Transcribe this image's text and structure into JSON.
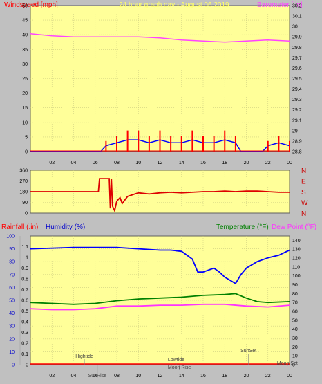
{
  "header": {
    "windspeed": "Windspeed [mph]",
    "title": "24 hour graph day - August 06 2019",
    "barometer": "Barometer [.in]"
  },
  "dir_labels": [
    "N",
    "W",
    "S",
    "E",
    "N"
  ],
  "bottom_header": {
    "rainfall": "Rainfall (.in)",
    "humidity": "Humidity (%)",
    "temperature": "Temperature (°F)",
    "dewpoint": "Dew Point (°F)"
  },
  "events": [
    {
      "label": "Hightide",
      "hour": 5.0
    },
    {
      "label": "SunRise",
      "hour": 6.2
    },
    {
      "label": "Lowtide",
      "hour": 13.5
    },
    {
      "label": "Moon Rise",
      "hour": 13.8
    },
    {
      "label": "SunSet",
      "hour": 20.2
    },
    {
      "label": "Moon Set",
      "hour": 23.8
    }
  ],
  "colors": {
    "plot_bg": "#ffff99",
    "frame": "#c0c0c0",
    "windspeed": "#ff0000",
    "gust_blue": "#0000ff",
    "barometer": "#ff44ff",
    "direction": "#dd0000",
    "humidity": "#0000ff",
    "temperature": "#008000",
    "dewpoint": "#ff33ff",
    "rain": "#ff0000"
  },
  "chart_data": [
    {
      "type": "line",
      "name": "wind-barometer",
      "x_ticks": [
        "02",
        "04",
        "06",
        "08",
        "10",
        "12",
        "14",
        "16",
        "18",
        "20",
        "22",
        "00"
      ],
      "ylim_left": [
        0,
        50
      ],
      "left_ticks": [
        "0",
        "5",
        "10",
        "15",
        "20",
        "25",
        "30",
        "35",
        "40",
        "45",
        "50"
      ],
      "ylim_right": [
        28.8,
        30.2
      ],
      "right_ticks": [
        "28.8",
        "28.9",
        "29",
        "29.1",
        "29.2",
        "29.3",
        "29.4",
        "29.5",
        "29.6",
        "29.7",
        "29.8",
        "29.9",
        "30",
        "30.1",
        "30.2"
      ],
      "series": [
        {
          "key": "barometer",
          "x": [
            0,
            2,
            4,
            6,
            8,
            10,
            12,
            14,
            16,
            18,
            20,
            22,
            24
          ],
          "values": [
            29.93,
            29.91,
            29.9,
            29.9,
            29.9,
            29.9,
            29.89,
            29.87,
            29.86,
            29.85,
            29.86,
            29.87,
            29.86
          ]
        },
        {
          "key": "windspeed_avg",
          "x": [
            0,
            6.5,
            7,
            8,
            9,
            10,
            11,
            12,
            13,
            14,
            15,
            16,
            17,
            18,
            19,
            19.5,
            21.5,
            22,
            23,
            24
          ],
          "values": [
            0,
            0,
            2,
            3,
            4,
            4,
            3,
            4,
            3,
            3,
            4,
            3,
            3,
            4,
            3,
            0,
            0,
            2,
            3,
            2
          ]
        }
      ]
    },
    {
      "type": "scatter",
      "name": "wind-direction",
      "ylim": [
        0,
        360
      ],
      "ticks": [
        "0",
        "90",
        "180",
        "270",
        "360"
      ],
      "x": [
        0,
        6.3,
        6.4,
        7.0,
        7.3,
        7.4,
        7.5,
        7.6,
        7.8,
        8,
        8.3,
        8.5,
        9,
        10,
        11,
        12,
        13,
        14,
        15,
        16,
        17,
        18,
        19,
        20,
        21,
        22,
        23,
        24
      ],
      "values": [
        180,
        180,
        290,
        290,
        290,
        40,
        290,
        60,
        20,
        100,
        130,
        80,
        140,
        170,
        160,
        170,
        175,
        170,
        175,
        180,
        180,
        185,
        180,
        185,
        185,
        180,
        175,
        175
      ]
    },
    {
      "type": "line",
      "name": "humidity-temperature",
      "x_ticks": [
        "02",
        "04",
        "06",
        "08",
        "10",
        "12",
        "14",
        "16",
        "18",
        "20",
        "22",
        "00"
      ],
      "ylim_left_humidity": [
        0,
        100
      ],
      "humidity_ticks": [
        "0",
        "10",
        "20",
        "30",
        "40",
        "50",
        "60",
        "70",
        "80",
        "90",
        "100"
      ],
      "ylim_left_rain": [
        0,
        1.2
      ],
      "rain_ticks": [
        "0",
        "0.1",
        "0.2",
        "0.3",
        "0.4",
        "0.5",
        "0.6",
        "0.7",
        "0.8",
        "0.9",
        "1",
        "1.1"
      ],
      "ylim_right": [
        0,
        145
      ],
      "right_ticks": [
        "0",
        "10",
        "20",
        "30",
        "40",
        "50",
        "60",
        "70",
        "80",
        "90",
        "100",
        "110",
        "120",
        "130",
        "140"
      ],
      "series": [
        {
          "key": "humidity",
          "x": [
            0,
            4,
            8,
            10,
            12,
            13,
            14,
            15,
            15.5,
            16,
            17,
            17.5,
            18,
            19,
            19.5,
            20,
            21,
            22,
            23,
            24
          ],
          "values": [
            90,
            91,
            91,
            90,
            89,
            89,
            88,
            82,
            72,
            72,
            75,
            72,
            68,
            63,
            70,
            75,
            80,
            83,
            85,
            89
          ]
        },
        {
          "key": "temperature",
          "x": [
            0,
            2,
            4,
            6,
            8,
            10,
            12,
            14,
            16,
            18,
            19,
            20,
            21,
            22,
            24
          ],
          "values": [
            70,
            69,
            68,
            69,
            72,
            74,
            75,
            76,
            78,
            79,
            80,
            75,
            71,
            70,
            71
          ]
        },
        {
          "key": "dewpoint",
          "x": [
            0,
            2,
            4,
            6,
            8,
            10,
            12,
            14,
            16,
            18,
            20,
            22,
            24
          ],
          "values": [
            63,
            62,
            62,
            63,
            66,
            66,
            67,
            67,
            68,
            68,
            66,
            65,
            67
          ]
        }
      ]
    }
  ]
}
